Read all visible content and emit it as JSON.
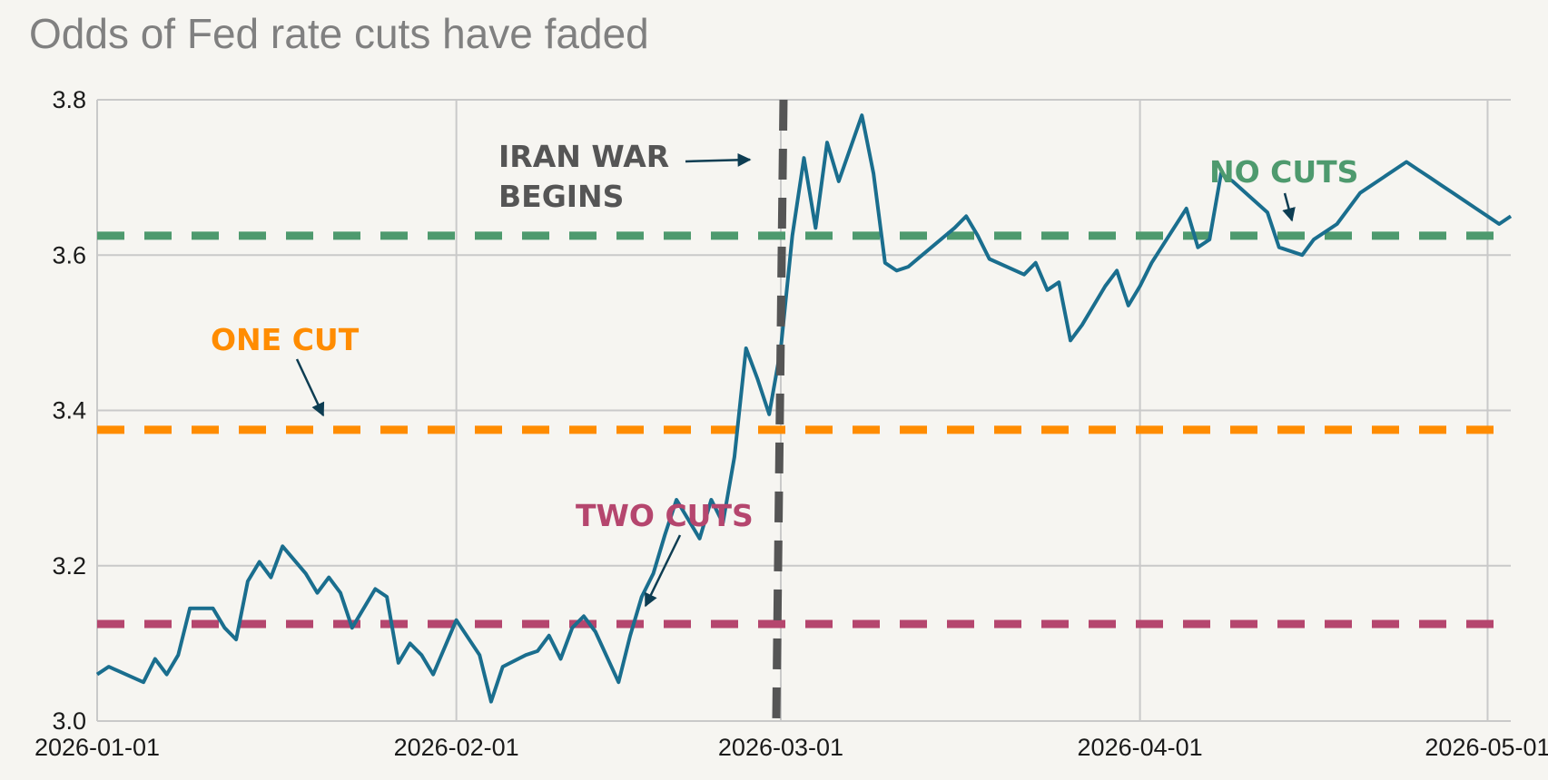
{
  "chart_data": {
    "type": "line",
    "title": "Odds of Fed rate cuts have faded",
    "xlabel": "",
    "ylabel": "",
    "xlim": [
      "2026-01-01",
      "2026-05-03"
    ],
    "ylim": [
      3.0,
      3.8
    ],
    "x_ticks": [
      "2026-01-01",
      "2026-02-01",
      "2026-03-01",
      "2026-04-01",
      "2026-05-01"
    ],
    "y_ticks": [
      "3.0",
      "3.2",
      "3.4",
      "3.6",
      "3.8"
    ],
    "grid": true,
    "series": [
      {
        "color": "#1a6e8e",
        "x": [
          "2026-01-01",
          "2026-01-02",
          "2026-01-05",
          "2026-01-06",
          "2026-01-07",
          "2026-01-08",
          "2026-01-09",
          "2026-01-11",
          "2026-01-12",
          "2026-01-13",
          "2026-01-14",
          "2026-01-15",
          "2026-01-16",
          "2026-01-17",
          "2026-01-19",
          "2026-01-20",
          "2026-01-21",
          "2026-01-22",
          "2026-01-23",
          "2026-01-25",
          "2026-01-26",
          "2026-01-27",
          "2026-01-28",
          "2026-01-29",
          "2026-01-30",
          "2026-02-01",
          "2026-02-03",
          "2026-02-04",
          "2026-02-05",
          "2026-02-07",
          "2026-02-08",
          "2026-02-09",
          "2026-02-10",
          "2026-02-11",
          "2026-02-12",
          "2026-02-13",
          "2026-02-15",
          "2026-02-16",
          "2026-02-17",
          "2026-02-18",
          "2026-02-19",
          "2026-02-20",
          "2026-02-22",
          "2026-02-23",
          "2026-02-24",
          "2026-02-25",
          "2026-02-26",
          "2026-02-27",
          "2026-02-28",
          "2026-03-01",
          "2026-03-02",
          "2026-03-03",
          "2026-03-04",
          "2026-03-05",
          "2026-03-06",
          "2026-03-08",
          "2026-03-09",
          "2026-03-10",
          "2026-03-11",
          "2026-03-12",
          "2026-03-16",
          "2026-03-17",
          "2026-03-18",
          "2026-03-19",
          "2026-03-22",
          "2026-03-23",
          "2026-03-24",
          "2026-03-25",
          "2026-03-26",
          "2026-03-27",
          "2026-03-29",
          "2026-03-30",
          "2026-03-31",
          "2026-04-01",
          "2026-04-02",
          "2026-04-05",
          "2026-04-06",
          "2026-04-07",
          "2026-04-08",
          "2026-04-09",
          "2026-04-12",
          "2026-04-13",
          "2026-04-15",
          "2026-04-16",
          "2026-04-18",
          "2026-04-19",
          "2026-04-20",
          "2026-04-22",
          "2026-04-24",
          "2026-04-25",
          "2026-04-26",
          "2026-04-27",
          "2026-04-28",
          "2026-04-29",
          "2026-04-30",
          "2026-05-01",
          "2026-05-02",
          "2026-05-03"
        ],
        "y": [
          3.06,
          3.07,
          3.05,
          3.08,
          3.06,
          3.085,
          3.145,
          3.145,
          3.12,
          3.105,
          3.18,
          3.205,
          3.185,
          3.225,
          3.19,
          3.165,
          3.185,
          3.165,
          3.12,
          3.17,
          3.16,
          3.075,
          3.1,
          3.085,
          3.06,
          3.13,
          3.085,
          3.025,
          3.07,
          3.085,
          3.09,
          3.11,
          3.08,
          3.12,
          3.135,
          3.115,
          3.05,
          3.11,
          3.16,
          3.19,
          3.24,
          3.285,
          3.235,
          3.285,
          3.255,
          3.34,
          3.48,
          3.44,
          3.395,
          3.48,
          3.625,
          3.725,
          3.635,
          3.745,
          3.695,
          3.78,
          3.705,
          3.59,
          3.58,
          3.585,
          3.635,
          3.65,
          3.625,
          3.595,
          3.575,
          3.59,
          3.555,
          3.565,
          3.49,
          3.51,
          3.56,
          3.58,
          3.535,
          3.56,
          3.59,
          3.66,
          3.61,
          3.62,
          3.705,
          3.695,
          3.655,
          3.61,
          3.6,
          3.62,
          3.64,
          3.66,
          3.68,
          3.7,
          3.72,
          3.71,
          3.7,
          3.69,
          3.68,
          3.67,
          3.66,
          3.65,
          3.64,
          3.65
        ]
      }
    ],
    "hlines": [
      {
        "label": "NO CUTS",
        "y": 3.625,
        "color": "#4e9a6e"
      },
      {
        "label": "ONE CUT",
        "y": 3.375,
        "color": "#ff8c00"
      },
      {
        "label": "TWO CUTS",
        "y": 3.125,
        "color": "#b5466e"
      }
    ],
    "vline": {
      "x": "2026-03-01",
      "label_lines": [
        "IRAN WAR",
        "BEGINS"
      ],
      "color": "#555555"
    }
  }
}
